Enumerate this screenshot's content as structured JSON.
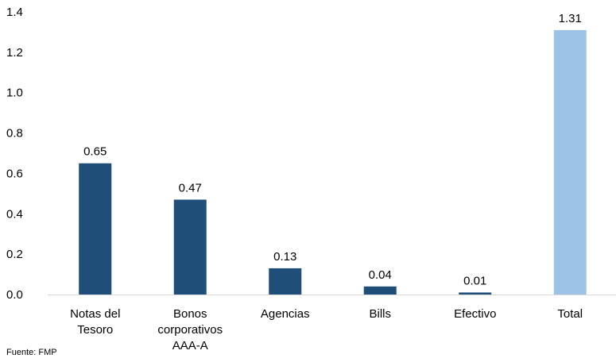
{
  "chart_data": {
    "type": "bar",
    "categories": [
      "Notas del Tesoro",
      "Bonos corporativos AAA-A",
      "Agencias",
      "Bills",
      "Efectivo",
      "Total"
    ],
    "category_lines": [
      [
        "Notas del",
        "Tesoro"
      ],
      [
        "Bonos",
        "corporativos",
        "AAA-A"
      ],
      [
        "Agencias"
      ],
      [
        "Bills"
      ],
      [
        "Efectivo"
      ],
      [
        "Total"
      ]
    ],
    "values": [
      0.65,
      0.47,
      0.13,
      0.04,
      0.01,
      1.31
    ],
    "data_labels": [
      "0.65",
      "0.47",
      "0.13",
      "0.04",
      "0.01",
      "1.31"
    ],
    "colors": [
      "#1f4e79",
      "#1f4e79",
      "#1f4e79",
      "#1f4e79",
      "#1f4e79",
      "#9dc3e6"
    ],
    "ylim": [
      0,
      1.4
    ],
    "yticks": [
      "0.0",
      "0.2",
      "0.4",
      "0.6",
      "0.8",
      "1.0",
      "1.2",
      "1.4"
    ],
    "grid": false,
    "title": "",
    "xlabel": "",
    "ylabel": ""
  },
  "source": "Fuente: FMP"
}
